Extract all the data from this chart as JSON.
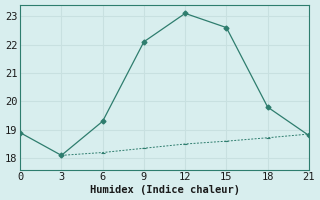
{
  "line1_x": [
    0,
    3,
    6,
    9,
    12,
    15,
    18,
    21
  ],
  "line1_y": [
    18.9,
    18.1,
    19.3,
    22.1,
    23.1,
    22.6,
    19.8,
    18.8
  ],
  "line2_x": [
    3,
    6,
    9,
    12,
    15,
    18,
    21
  ],
  "line2_y": [
    18.1,
    18.2,
    18.35,
    18.5,
    18.6,
    18.72,
    18.85
  ],
  "line_color": "#2e7d6e",
  "bg_color": "#d8eeee",
  "grid_color": "#c8e0e0",
  "spine_color": "#2e7d6e",
  "xlabel": "Humidex (Indice chaleur)",
  "xlim": [
    0,
    21
  ],
  "ylim": [
    17.6,
    23.4
  ],
  "xticks": [
    0,
    3,
    6,
    9,
    12,
    15,
    18,
    21
  ],
  "yticks": [
    18,
    19,
    20,
    21,
    22,
    23
  ],
  "font_size": 7.5
}
